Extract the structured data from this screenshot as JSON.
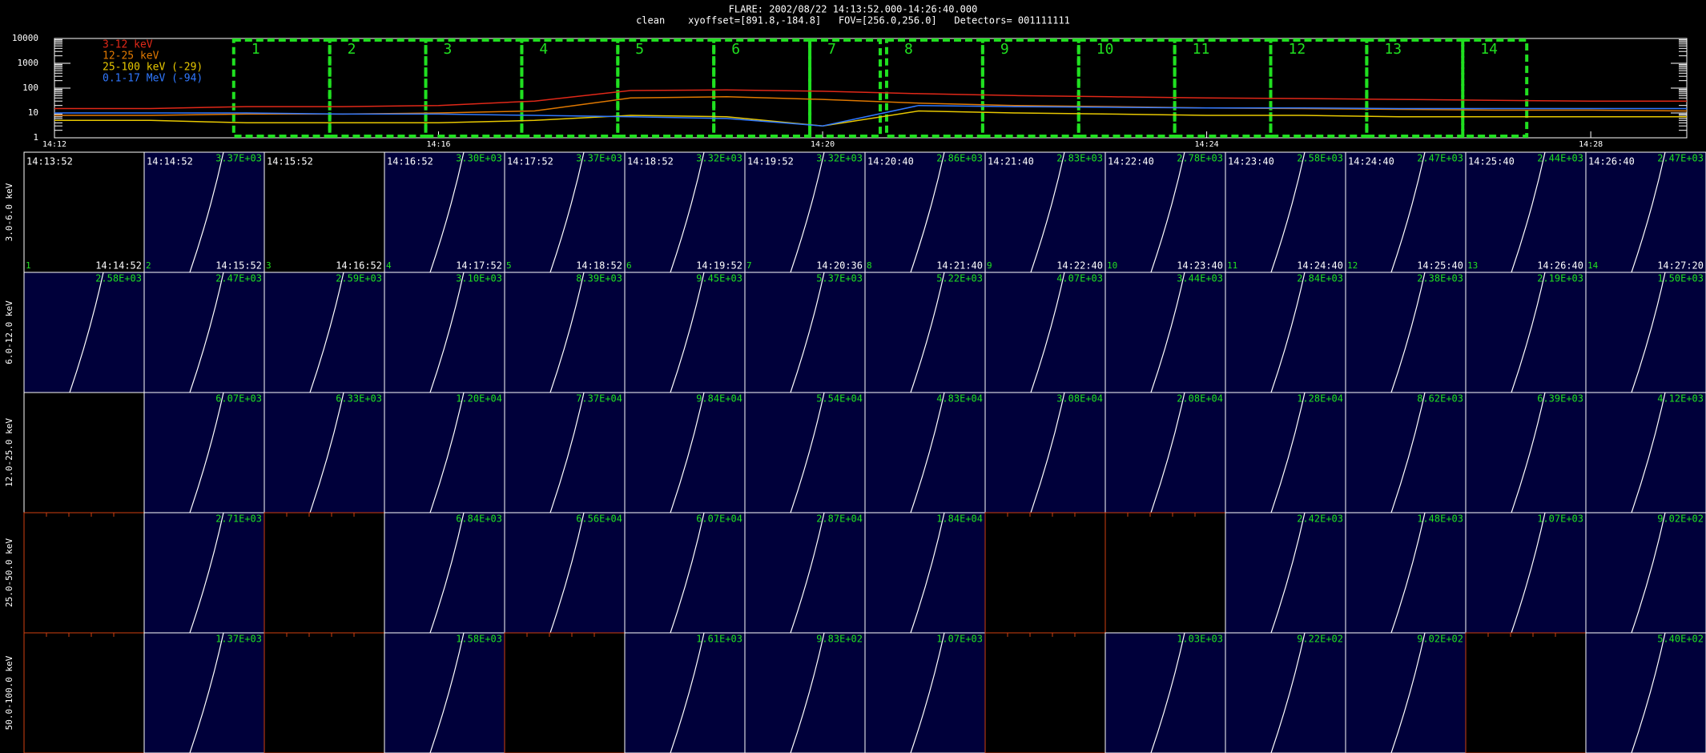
{
  "header": {
    "line1": "FLARE: 2002/08/22 14:13:52.000-14:26:40.000",
    "line2": "clean    xyoffset=[891.8,-184.8]   FOV=[256.0,256.0]   Detectors= 001111111"
  },
  "chart_data": {
    "type": "line",
    "log_y": true,
    "x": [
      "14:12",
      "14:13",
      "14:14",
      "14:15",
      "14:16",
      "14:17",
      "14:18",
      "14:19",
      "14:20",
      "14:21",
      "14:22",
      "14:23",
      "14:24",
      "14:25",
      "14:26",
      "14:27",
      "14:28",
      "14:29"
    ],
    "series": [
      {
        "name": "3-12 keV",
        "color": "#e02818",
        "values": [
          15,
          15,
          18,
          18,
          20,
          30,
          80,
          85,
          75,
          60,
          50,
          45,
          40,
          38,
          35,
          32,
          30,
          30
        ]
      },
      {
        "name": "12-25 keV",
        "color": "#e07800",
        "values": [
          8,
          8,
          9,
          9,
          10,
          12,
          40,
          45,
          35,
          25,
          20,
          18,
          16,
          15,
          14,
          13,
          13,
          12
        ]
      },
      {
        "name": "25-100 keV (-29)",
        "color": "#e8c800",
        "values": [
          5,
          5,
          4,
          4,
          4,
          5,
          8,
          7,
          3,
          12,
          10,
          9,
          8,
          8,
          7,
          7,
          7,
          7
        ]
      },
      {
        "name": "0.1-17 MeV (-94)",
        "color": "#3078ff",
        "values": [
          10,
          10,
          10,
          9,
          9,
          8,
          7,
          6,
          3,
          20,
          18,
          17,
          16,
          16,
          15,
          15,
          15,
          15
        ]
      }
    ],
    "xlim": [
      "14:12",
      "14:29"
    ],
    "xticks": [
      "14:12",
      "14:16",
      "14:20",
      "14:24",
      "14:28"
    ],
    "ylim": [
      1,
      10000
    ],
    "yticks": [
      1,
      10,
      100,
      1000,
      10000
    ]
  },
  "panels": {
    "rows": [
      "3.0-6.0 keV",
      "6.0-12.0 keV",
      "12.0-25.0 keV",
      "25.0-50.0 keV",
      "50.0-100.0 keV"
    ],
    "numbers": [
      1,
      2,
      3,
      4,
      5,
      6,
      7,
      8,
      9,
      10,
      11,
      12,
      13,
      14
    ],
    "start_times": [
      "14:13:52",
      "14:14:52",
      "14:15:52",
      "14:16:52",
      "14:17:52",
      "14:18:52",
      "14:19:52",
      "14:20:40",
      "14:21:40",
      "14:22:40",
      "14:23:40",
      "14:24:40",
      "14:25:40",
      "14:26:40"
    ],
    "end_times": [
      "14:14:52",
      "14:15:52",
      "14:16:52",
      "14:17:52",
      "14:18:52",
      "14:19:52",
      "14:20:36",
      "14:21:40",
      "14:22:40",
      "14:23:40",
      "14:24:40",
      "14:25:40",
      "14:26:40",
      "14:27:20"
    ],
    "max_values": [
      [
        null,
        "3.37E+03",
        null,
        "3.30E+03",
        "3.37E+03",
        "3.32E+03",
        "3.32E+03",
        "2.86E+03",
        "2.83E+03",
        "2.78E+03",
        "2.58E+03",
        "2.47E+03",
        "2.44E+03",
        "2.47E+03"
      ],
      [
        "2.58E+03",
        "2.47E+03",
        "2.59E+03",
        "3.10E+03",
        "8.39E+03",
        "9.45E+03",
        "5.37E+03",
        "5.22E+03",
        "4.07E+03",
        "3.44E+03",
        "2.84E+03",
        "2.38E+03",
        "2.19E+03",
        "1.50E+03"
      ],
      [
        null,
        "6.07E+03",
        "6.33E+03",
        "1.20E+04",
        "7.37E+04",
        "9.84E+04",
        "5.54E+04",
        "4.83E+04",
        "3.08E+04",
        "2.08E+04",
        "1.28E+04",
        "8.62E+03",
        "6.39E+03",
        "4.12E+03"
      ],
      [
        null,
        "2.71E+03",
        null,
        "6.84E+03",
        "6.56E+04",
        "6.07E+04",
        "2.87E+04",
        "1.84E+04",
        null,
        null,
        "2.42E+03",
        "1.48E+03",
        "1.07E+03",
        "9.02E+02"
      ],
      [
        null,
        "1.37E+03",
        null,
        "1.58E+03",
        null,
        "1.61E+03",
        "9.83E+02",
        "1.07E+03",
        null,
        "1.03E+03",
        "9.22E+02",
        "9.02E+02",
        null,
        "5.40E+02"
      ]
    ]
  }
}
